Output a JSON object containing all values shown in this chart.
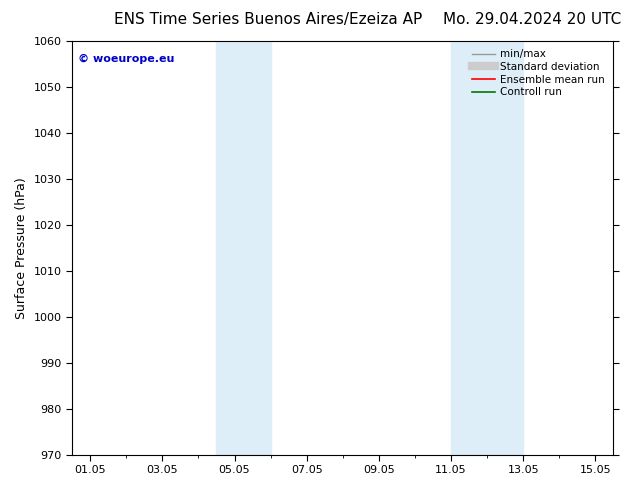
{
  "title_left": "ENS Time Series Buenos Aires/Ezeiza AP",
  "title_right": "Mo. 29.04.2024 20 UTC",
  "ylabel": "Surface Pressure (hPa)",
  "ylim": [
    970,
    1060
  ],
  "yticks": [
    970,
    980,
    990,
    1000,
    1010,
    1020,
    1030,
    1040,
    1050,
    1060
  ],
  "xtick_labels": [
    "01.05",
    "03.05",
    "05.05",
    "07.05",
    "09.05",
    "11.05",
    "13.05",
    "15.05"
  ],
  "xtick_positions": [
    1,
    3,
    5,
    7,
    9,
    11,
    13,
    15
  ],
  "xlim": [
    0.5,
    15.5
  ],
  "shaded_bands": [
    {
      "x_start": 4.5,
      "x_end": 6.0,
      "color": "#ddeef8"
    },
    {
      "x_start": 11.0,
      "x_end": 13.0,
      "color": "#ddeef8"
    }
  ],
  "watermark_text": "© woeurope.eu",
  "watermark_color": "#0000cc",
  "legend_items": [
    {
      "label": "min/max",
      "color": "#999999",
      "lw": 1.0,
      "style": "solid"
    },
    {
      "label": "Standard deviation",
      "color": "#cccccc",
      "lw": 6,
      "style": "solid"
    },
    {
      "label": "Ensemble mean run",
      "color": "#ff0000",
      "lw": 1.2,
      "style": "solid"
    },
    {
      "label": "Controll run",
      "color": "#007700",
      "lw": 1.2,
      "style": "solid"
    }
  ],
  "bg_color": "#ffffff",
  "title_fontsize": 11,
  "axis_label_fontsize": 9,
  "tick_fontsize": 8,
  "watermark_fontsize": 8,
  "legend_fontsize": 7.5
}
